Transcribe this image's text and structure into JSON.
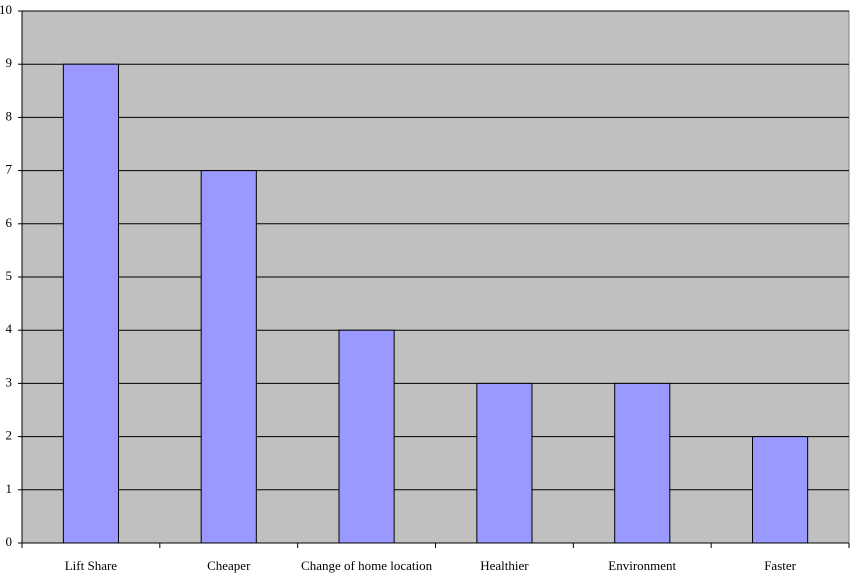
{
  "chart_data": {
    "type": "bar",
    "categories": [
      "Lift Share",
      "Cheaper",
      "Change of home location",
      "Healthier",
      "Environment",
      "Faster"
    ],
    "values": [
      9,
      7,
      4,
      3,
      3,
      2
    ],
    "color": "#9999ff",
    "plot_background": "#c0c0c0",
    "ylim": [
      0,
      10
    ],
    "yticks": [
      0,
      1,
      2,
      3,
      4,
      5,
      6,
      7,
      8,
      9,
      10
    ],
    "grid": true
  }
}
